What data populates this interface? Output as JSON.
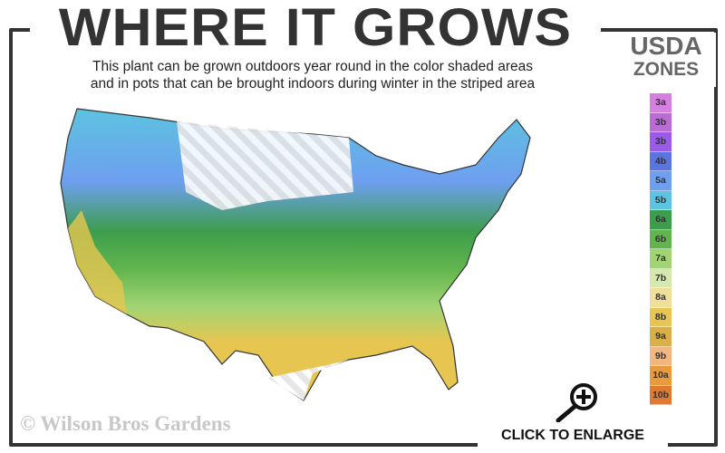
{
  "header": {
    "title": "WHERE IT GROWS",
    "subtitle_line1": "This plant can be grown outdoors year round in the color shaded areas",
    "subtitle_line2": "and in pots that can be brought indoors during winter in the striped area"
  },
  "legend": {
    "title_line1": "USDA",
    "title_line2": "ZONES",
    "zones": [
      {
        "label": "3a",
        "color": "#d57fe0"
      },
      {
        "label": "3b",
        "color": "#bb6bd6"
      },
      {
        "label": "3b",
        "color": "#9a5ce8"
      },
      {
        "label": "4b",
        "color": "#5a74e0"
      },
      {
        "label": "5a",
        "color": "#6e9ff0"
      },
      {
        "label": "5b",
        "color": "#5cc3e0"
      },
      {
        "label": "6a",
        "color": "#3c9e4c"
      },
      {
        "label": "6b",
        "color": "#62b54e"
      },
      {
        "label": "7a",
        "color": "#a2d474"
      },
      {
        "label": "7b",
        "color": "#d6e8b0"
      },
      {
        "label": "8a",
        "color": "#efdf9a"
      },
      {
        "label": "8b",
        "color": "#e6c650"
      },
      {
        "label": "9a",
        "color": "#d9b048"
      },
      {
        "label": "9b",
        "color": "#f2b680"
      },
      {
        "label": "10a",
        "color": "#ea9a3a"
      },
      {
        "label": "10b",
        "color": "#e07a30"
      }
    ]
  },
  "footer": {
    "copyright": "© Wilson Bros Gardens",
    "enlarge_label": "CLICK TO ENLARGE",
    "icon": "magnifier-plus-icon"
  }
}
